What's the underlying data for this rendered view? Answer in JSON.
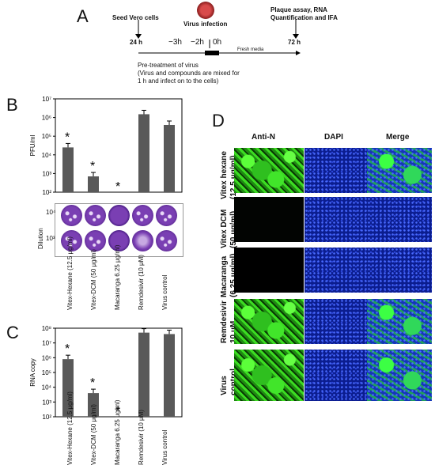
{
  "panel_a": {
    "letter": "A",
    "seed": "Seed Vero cells",
    "virus_infection": "Virus infection",
    "plaque": "Plaque assay, RNA",
    "plaque2": "Quantification and IFA",
    "t24": "24 h",
    "t72": "72 h",
    "m3": "−3h",
    "m2": "−2h",
    "zero": "0h",
    "fresh": "Fresh media",
    "pre1": "Pre-treatment of virus",
    "pre2": "(Virus and compounds are mixed for",
    "pre3": "1 h and infect on to the cells)"
  },
  "panel_b": {
    "letter": "B",
    "dilution": "Dilution",
    "d4": "10⁴",
    "d3": "10³"
  },
  "panel_c": {
    "letter": "C"
  },
  "panel_d": {
    "letter": "D",
    "cols": [
      "Anti-N",
      "DAPI",
      "Merge"
    ],
    "rows": [
      "Vitex hexane (12.5 μg/ml)",
      "Vitex DCM (50 μg/ml)",
      "Macaranga (6.25 μg/ml)",
      "Remdesivir 10 μM",
      "Virus control"
    ]
  },
  "chart_data": [
    {
      "type": "bar",
      "ylabel": "PFU/ml",
      "scale": "log",
      "ylim": [
        100,
        10000000
      ],
      "yticks": [
        "10²",
        "10³",
        "10⁴",
        "10⁵",
        "10⁶",
        "10⁷"
      ],
      "categories": [
        "Vitex-Hexane (12.5 μg/ml)",
        "Vitex-DCM (50 μg/ml)",
        "Macaranga 6.25 μg/ml)",
        "Remdesivir (10 μM)",
        "Virus control"
      ],
      "values": [
        25000,
        700,
        0,
        1500000,
        400000
      ],
      "significant": [
        true,
        true,
        true,
        false,
        false
      ]
    },
    {
      "type": "bar",
      "ylabel": "RNA copy",
      "scale": "log",
      "ylim": [
        100,
        100000000
      ],
      "yticks": [
        "10²",
        "10³",
        "10⁴",
        "10⁵",
        "10⁶",
        "10⁷",
        "10⁸"
      ],
      "categories": [
        "Vitex-Hexane (12.5 μg/ml)",
        "Vitex-DCM (50 μg/ml)",
        "Macaranga 6.25 μg/ml)",
        "Remdesivir (10 μM)",
        "Virus control"
      ],
      "values": [
        800000,
        4000,
        0,
        50000000,
        40000000
      ],
      "significant": [
        true,
        true,
        true,
        false,
        false
      ]
    }
  ]
}
